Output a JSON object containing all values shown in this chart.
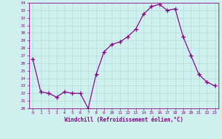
{
  "x": [
    0,
    1,
    2,
    3,
    4,
    5,
    6,
    7,
    8,
    9,
    10,
    11,
    12,
    13,
    14,
    15,
    16,
    17,
    18,
    19,
    20,
    21,
    22,
    23
  ],
  "y": [
    26.5,
    22.2,
    22.0,
    21.5,
    22.2,
    22.0,
    22.0,
    20.0,
    24.5,
    27.5,
    28.5,
    28.8,
    29.5,
    30.5,
    32.5,
    33.5,
    33.8,
    33.0,
    33.2,
    29.5,
    27.0,
    24.5,
    23.5,
    23.0
  ],
  "line_color": "#880088",
  "marker": "+",
  "marker_size": 4,
  "xlim": [
    -0.5,
    23.5
  ],
  "ylim": [
    20,
    34
  ],
  "yticks": [
    20,
    21,
    22,
    23,
    24,
    25,
    26,
    27,
    28,
    29,
    30,
    31,
    32,
    33,
    34
  ],
  "xticks": [
    0,
    1,
    2,
    3,
    4,
    5,
    6,
    7,
    8,
    9,
    10,
    11,
    12,
    13,
    14,
    15,
    16,
    17,
    18,
    19,
    20,
    21,
    22,
    23
  ],
  "xlabel": "Windchill (Refroidissement éolien,°C)",
  "bg_color": "#d0f0f0",
  "grid_color": "#b8dde0",
  "tick_color": "#880088",
  "label_color": "#880088"
}
